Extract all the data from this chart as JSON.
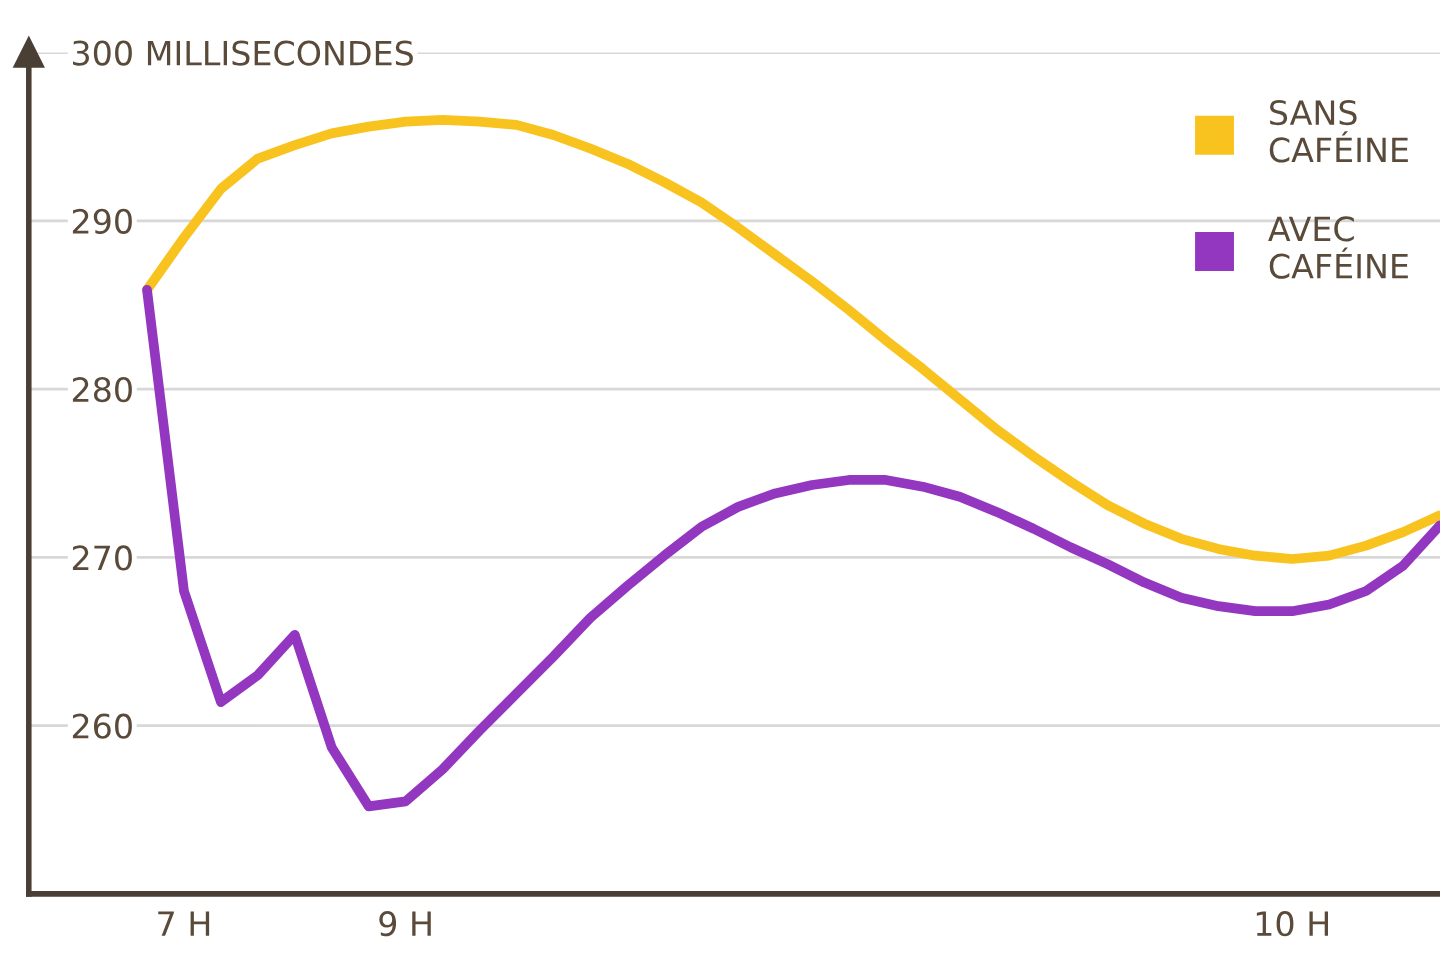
{
  "chart_data": {
    "type": "line",
    "categories": [
      null,
      "7 H",
      null,
      null,
      null,
      null,
      null,
      "9 H",
      null,
      null,
      null,
      null,
      null,
      null,
      null,
      null,
      null,
      null,
      null,
      null,
      null,
      null,
      null,
      null,
      null,
      null,
      null,
      null,
      null,
      null,
      null,
      "10 H",
      null,
      null,
      null,
      null
    ],
    "series": [
      {
        "name": "SANS\nCAFÉINE",
        "color": "#f9c31f",
        "values": [
          285.9,
          289.0,
          291.9,
          293.7,
          294.5,
          295.2,
          295.6,
          295.9,
          296.0,
          295.9,
          295.7,
          295.1,
          294.3,
          293.4,
          292.3,
          291.1,
          289.6,
          288.0,
          286.4,
          284.7,
          282.9,
          281.2,
          279.4,
          277.6,
          276.0,
          274.5,
          273.1,
          272.0,
          271.1,
          270.5,
          270.1,
          269.9,
          270.1,
          270.7,
          271.5,
          272.5
        ]
      },
      {
        "name": "AVEC\nCAFÉINE",
        "color": "#9437c0",
        "values": [
          285.9,
          268.0,
          261.4,
          263.0,
          265.4,
          258.7,
          255.2,
          255.5,
          257.4,
          259.7,
          261.9,
          264.1,
          266.4,
          268.3,
          270.1,
          271.8,
          273.0,
          273.8,
          274.3,
          274.6,
          274.6,
          274.2,
          273.6,
          272.7,
          271.7,
          270.6,
          269.6,
          268.5,
          267.6,
          267.1,
          266.8,
          266.8,
          267.2,
          268.0,
          269.5,
          271.9
        ]
      }
    ],
    "ylim": [
      250,
      300
    ],
    "yticks": [
      260,
      270,
      280,
      290,
      {
        "value": 300,
        "label": "300 MILLISECONDES"
      }
    ],
    "grid": "y",
    "legend": "top right",
    "marker": "none",
    "line_style": "solid"
  }
}
